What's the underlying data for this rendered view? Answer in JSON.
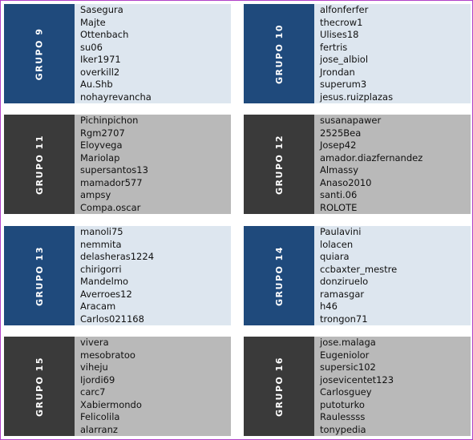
{
  "colors": {
    "blue_label": "#1f4a7c",
    "blue_panel": "#dde6ef",
    "dark_label": "#3a3a3a",
    "dark_panel": "#b9b9b9",
    "border": "#b040c8"
  },
  "groups": [
    {
      "label": "GRUPO 9",
      "members": [
        "Sasegura",
        "Majte",
        "Ottenbach",
        "su06",
        "Iker1971",
        "overkill2",
        "Au.Shb",
        "nohayrevancha"
      ]
    },
    {
      "label": "GRUPO 10",
      "members": [
        "alfonferfer",
        "thecrow1",
        "Ulises18",
        "fertris",
        "jose_albiol",
        "Jrondan",
        "superum3",
        "jesus.ruizplazas"
      ]
    },
    {
      "label": "GRUPO 11",
      "members": [
        "Pichinpichon",
        "Rgm2707",
        "Eloyvega",
        "Mariolap",
        "supersantos13",
        "mamador577",
        "ampsy",
        "Compa.oscar"
      ]
    },
    {
      "label": "GRUPO 12",
      "members": [
        "susanapawer",
        "2525Bea",
        "Josep42",
        "amador.diazfernandez",
        "Almassy",
        "Anaso2010",
        "santi.06",
        "ROLOTE"
      ]
    },
    {
      "label": "GRUPO 13",
      "members": [
        "manoli75",
        "nemmita",
        "delasheras1224",
        "chirigorri",
        "Mandelmo",
        "Averroes12",
        "Aracam",
        "Carlos021168"
      ]
    },
    {
      "label": "GRUPO 14",
      "members": [
        "Paulavini",
        "lolacen",
        "quiara",
        "ccbaxter_mestre",
        "donziruelo",
        "ramasgar",
        "h46",
        "trongon71"
      ]
    },
    {
      "label": "GRUPO 15",
      "members": [
        "vivera",
        "mesobratoo",
        "viheju",
        "Ijordi69",
        "carc7",
        "Xabiermondo",
        "Felicolila",
        "alarranz"
      ]
    },
    {
      "label": "GRUPO 16",
      "members": [
        "jose.malaga",
        "Eugeniolor",
        "supersic102",
        "josevicentet123",
        "Carlosguey",
        "putoturko",
        "Raulessss",
        "tonypedia"
      ]
    }
  ]
}
